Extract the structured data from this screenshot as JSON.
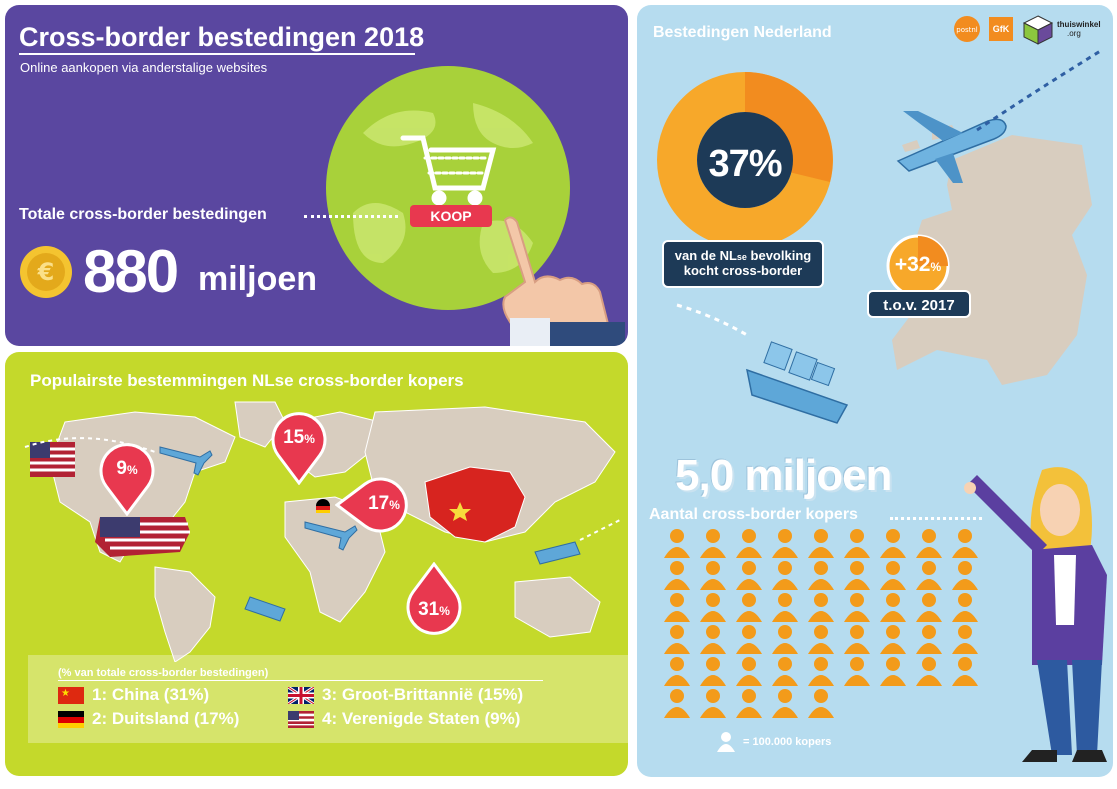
{
  "purple": {
    "title": "Cross-border bestedingen 2018",
    "subtitle": "Online aankopen via anderstalige websites",
    "total_label": "Totale cross-border bestedingen",
    "total_value": "880",
    "total_unit": "miljoen",
    "koop_button": "KOOP",
    "colors": {
      "panel": "#5a47a0",
      "globe": "#a8d13a",
      "button": "#e8384f"
    }
  },
  "green": {
    "title": "Populairste bestemmingen NLse cross-border kopers",
    "pins": [
      {
        "value": "9",
        "pct": "%"
      },
      {
        "value": "15",
        "pct": "%"
      },
      {
        "value": "17",
        "pct": "%"
      },
      {
        "value": "31",
        "pct": "%"
      }
    ],
    "legend_note": "(% van totale cross-border bestedingen)",
    "legend": [
      {
        "text": "1: China (31%)",
        "flag": "china-flag-icon"
      },
      {
        "text": "2: Duitsland (17%)",
        "flag": "germany-flag-icon"
      },
      {
        "text": "3: Groot-Brittannië (15%)",
        "flag": "uk-flag-icon"
      },
      {
        "text": "4: Verenigde Staten (9%)",
        "flag": "usa-flag-icon"
      }
    ],
    "colors": {
      "panel": "#c4d92b",
      "map": "#d8cdbf",
      "pin": "#e8384f"
    }
  },
  "blue": {
    "title": "Bestedingen Nederland",
    "donut_value": "37%",
    "donut_caption_1": "van de NL",
    "donut_caption_se": "se",
    "donut_caption_2": " bevolking",
    "donut_caption_3": "kocht cross-border",
    "growth_value": "+32",
    "growth_pct": "%",
    "growth_label": "t.o.v. 2017",
    "buyers_value": "5,0 miljoen",
    "buyers_label": "Aantal cross-border kopers",
    "people_count": 50,
    "legend": "= 100.000 kopers",
    "logos": [
      "postnl",
      "GfK",
      "thuiswinkel",
      ".org"
    ],
    "colors": {
      "panel": "#b6dcef",
      "orange": "#f28c1f",
      "dark": "#1d3a57",
      "person": "#f39b1a"
    }
  }
}
